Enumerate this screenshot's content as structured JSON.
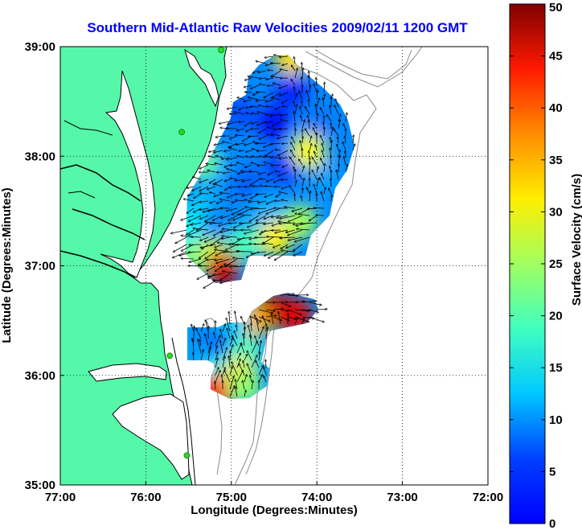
{
  "chart_data": {
    "type": "heatmap",
    "title": "Southern Mid-Atlantic Raw Velocities 2009/02/11 1200 GMT",
    "xlabel": "Longitude (Degrees:Minutes)",
    "ylabel": "Latitude (Degrees:Minutes)",
    "x_ticks": [
      "77:00",
      "76:00",
      "75:00",
      "74:00",
      "73:00",
      "72:00"
    ],
    "x_tick_values": [
      -77,
      -76,
      -75,
      -74,
      -73,
      -72
    ],
    "y_ticks": [
      "35:00",
      "36:00",
      "37:00",
      "38:00",
      "39:00"
    ],
    "y_tick_values": [
      35,
      36,
      37,
      38,
      39
    ],
    "xlim": [
      -77,
      -72
    ],
    "ylim": [
      35,
      39
    ],
    "grid": true,
    "grid_style": "dotted",
    "colorbar": {
      "label": "Surface Velocity (cm/s)",
      "ticks": [
        "0",
        "5",
        "10",
        "15",
        "20",
        "25",
        "30",
        "35",
        "40",
        "45",
        "50"
      ],
      "min": 0,
      "max": 50,
      "colormap": "jet"
    },
    "land_color": "#55f7a8",
    "station_color": "#22dd22",
    "stations": [
      {
        "lon": -75.12,
        "lat": 38.97
      },
      {
        "lon": -75.58,
        "lat": 38.22
      },
      {
        "lon": -75.72,
        "lat": 36.18
      },
      {
        "lon": -75.52,
        "lat": 35.27
      }
    ],
    "velocity_regions": [
      {
        "name": "north",
        "patches": [
          {
            "lon": -74.9,
            "lat": 38.4,
            "speed": 10
          },
          {
            "lon": -74.5,
            "lat": 38.3,
            "speed": 7
          },
          {
            "lon": -74.3,
            "lat": 38.6,
            "speed": 8
          },
          {
            "lon": -74.4,
            "lat": 37.9,
            "speed": 9
          },
          {
            "lon": -74.8,
            "lat": 37.75,
            "speed": 11
          },
          {
            "lon": -75.2,
            "lat": 37.9,
            "speed": 14
          },
          {
            "lon": -75.35,
            "lat": 37.55,
            "speed": 16
          },
          {
            "lon": -75.1,
            "lat": 37.45,
            "speed": 13
          },
          {
            "lon": -74.6,
            "lat": 37.5,
            "speed": 15
          },
          {
            "lon": -74.2,
            "lat": 37.4,
            "speed": 27
          },
          {
            "lon": -74.5,
            "lat": 37.25,
            "speed": 32
          },
          {
            "lon": -74.85,
            "lat": 37.2,
            "speed": 22
          },
          {
            "lon": -75.25,
            "lat": 37.1,
            "speed": 30
          },
          {
            "lon": -75.1,
            "lat": 36.97,
            "speed": 46
          },
          {
            "lon": -75.35,
            "lat": 37.95,
            "speed": 24
          },
          {
            "lon": -74.3,
            "lat": 38.9,
            "speed": 33
          },
          {
            "lon": -74.0,
            "lat": 38.3,
            "speed": 12
          },
          {
            "lon": -73.9,
            "lat": 37.8,
            "speed": 14
          },
          {
            "lon": -75.55,
            "lat": 37.35,
            "speed": 19
          },
          {
            "lon": -75.5,
            "lat": 37.05,
            "speed": 25
          },
          {
            "lon": -74.1,
            "lat": 38.05,
            "speed": 31
          }
        ]
      },
      {
        "name": "south",
        "patches": [
          {
            "lon": -74.5,
            "lat": 36.6,
            "speed": 47
          },
          {
            "lon": -74.25,
            "lat": 36.55,
            "speed": 45
          },
          {
            "lon": -74.75,
            "lat": 36.5,
            "speed": 35
          },
          {
            "lon": -75.0,
            "lat": 36.45,
            "speed": 17
          },
          {
            "lon": -75.3,
            "lat": 36.3,
            "speed": 12
          },
          {
            "lon": -75.05,
            "lat": 36.25,
            "speed": 11
          },
          {
            "lon": -74.85,
            "lat": 36.2,
            "speed": 22
          },
          {
            "lon": -75.45,
            "lat": 36.2,
            "speed": 14
          },
          {
            "lon": -75.15,
            "lat": 36.0,
            "speed": 20
          },
          {
            "lon": -74.9,
            "lat": 36.0,
            "speed": 33
          },
          {
            "lon": -75.2,
            "lat": 35.85,
            "speed": 43
          },
          {
            "lon": -74.85,
            "lat": 35.9,
            "speed": 26
          }
        ]
      }
    ]
  }
}
